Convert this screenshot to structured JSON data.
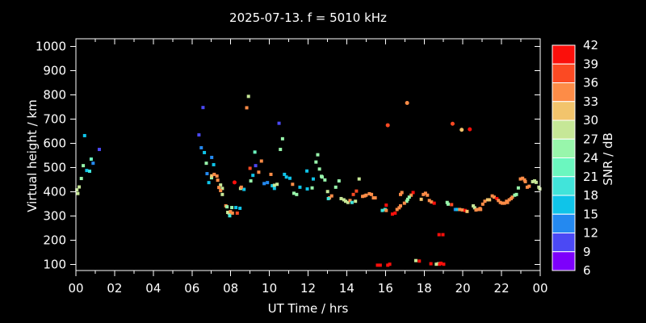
{
  "figure": {
    "background": "#000000",
    "text_color": "#ffffff",
    "frame_color": "#ffffff"
  },
  "chart_data": {
    "type": "scatter",
    "title": "2025-07-13. f = 5010 kHz",
    "xlabel": "UT Time / hrs",
    "ylabel": "Virtual height / km",
    "grid": false,
    "xlim": [
      0,
      24
    ],
    "ylim": [
      75,
      1032
    ],
    "x_major_ticks": [
      0,
      2,
      4,
      6,
      8,
      10,
      12,
      14,
      16,
      18,
      20,
      22,
      24
    ],
    "x_major_labels": [
      "00",
      "02",
      "04",
      "06",
      "08",
      "10",
      "12",
      "14",
      "16",
      "18",
      "20",
      "22",
      "00"
    ],
    "x_minor_ticks": [
      1,
      3,
      5,
      7,
      9,
      11,
      13,
      15,
      17,
      19,
      21,
      23
    ],
    "y_ticks": [
      100,
      200,
      300,
      400,
      500,
      600,
      700,
      800,
      900,
      1000
    ],
    "colorbar": {
      "label": "SNR / dB",
      "tick_labels": [
        "42",
        "39",
        "36",
        "33",
        "30",
        "27",
        "24",
        "21",
        "18",
        "15",
        "12",
        "9",
        "6"
      ],
      "colors_low_to_high": [
        "#7d00fb",
        "#4b49f4",
        "#2489f0",
        "#0fc4e9",
        "#41e4da",
        "#6bf7bf",
        "#98f6ab",
        "#c6e797",
        "#f2c46c",
        "#fd8c47",
        "#fb4a23",
        "#fb0f0b"
      ]
    },
    "points_format": "[ut_hours, virtual_height_km, snr_color_index (0 = 6-9 dB ... 11 = 39-42 dB), optional 1 = circle marker]",
    "points": [
      [
        0.45,
        632,
        3
      ],
      [
        1.21,
        575,
        1
      ],
      [
        0.79,
        535,
        5
      ],
      [
        0.89,
        518,
        2
      ],
      [
        0.38,
        508,
        6
      ],
      [
        0.56,
        488,
        3
      ],
      [
        0.71,
        485,
        4
      ],
      [
        0.28,
        455,
        6
      ],
      [
        0.17,
        420,
        7
      ],
      [
        0.05,
        408,
        7
      ],
      [
        0.1,
        393,
        7
      ],
      [
        6.57,
        748,
        1
      ],
      [
        6.36,
        635,
        1
      ],
      [
        6.48,
        582,
        2
      ],
      [
        6.64,
        562,
        3
      ],
      [
        7.02,
        542,
        2
      ],
      [
        6.74,
        518,
        6
      ],
      [
        7.12,
        512,
        3
      ],
      [
        6.78,
        475,
        2
      ],
      [
        7.01,
        458,
        6
      ],
      [
        7.29,
        465,
        9
      ],
      [
        6.87,
        438,
        3
      ],
      [
        7.33,
        448,
        9
      ],
      [
        7.48,
        428,
        7
      ],
      [
        7.39,
        418,
        9
      ],
      [
        7.57,
        414,
        7
      ],
      [
        7.48,
        405,
        9
      ],
      [
        7.57,
        389,
        7
      ],
      [
        7.02,
        466,
        8
      ],
      [
        7.15,
        472,
        9
      ],
      [
        7.75,
        342,
        9
      ],
      [
        7.81,
        338,
        6
      ],
      [
        8.06,
        335,
        6
      ],
      [
        8.27,
        335,
        3
      ],
      [
        8.48,
        332,
        3
      ],
      [
        7.85,
        315,
        7
      ],
      [
        7.92,
        312,
        7
      ],
      [
        7.99,
        318,
        9
      ],
      [
        8.09,
        312,
        9
      ],
      [
        8.34,
        312,
        10
      ],
      [
        7.95,
        301,
        4
      ],
      [
        8.92,
        794,
        7
      ],
      [
        8.83,
        747,
        9
      ],
      [
        8.2,
        439,
        11,
        1
      ],
      [
        9.0,
        497,
        10
      ],
      [
        9.29,
        508,
        1
      ],
      [
        9.15,
        468,
        3
      ],
      [
        9.25,
        564,
        5
      ],
      [
        9.45,
        481,
        9
      ],
      [
        9.59,
        527,
        9
      ],
      [
        9.04,
        445,
        6
      ],
      [
        8.51,
        414,
        7
      ],
      [
        8.69,
        410,
        3
      ],
      [
        8.55,
        419,
        9
      ],
      [
        10.5,
        683,
        1
      ],
      [
        10.68,
        619,
        6
      ],
      [
        10.57,
        575,
        6
      ],
      [
        10.08,
        472,
        9
      ],
      [
        10.15,
        425,
        3
      ],
      [
        10.26,
        414,
        3
      ],
      [
        10.26,
        427,
        7
      ],
      [
        10.4,
        431,
        7
      ],
      [
        9.73,
        434,
        2
      ],
      [
        9.9,
        438,
        2
      ],
      [
        10.78,
        472,
        3
      ],
      [
        10.88,
        461,
        3
      ],
      [
        11.06,
        456,
        3
      ],
      [
        11.2,
        431,
        9
      ],
      [
        11.27,
        394,
        6
      ],
      [
        11.41,
        389,
        6
      ],
      [
        11.58,
        419,
        3
      ],
      [
        11.96,
        412,
        3
      ],
      [
        12.21,
        416,
        6
      ],
      [
        11.94,
        486,
        3
      ],
      [
        12.27,
        453,
        3
      ],
      [
        12.5,
        553,
        6
      ],
      [
        12.41,
        523,
        6
      ],
      [
        12.59,
        494,
        6
      ],
      [
        12.69,
        464,
        6
      ],
      [
        12.73,
        461,
        6
      ],
      [
        12.87,
        449,
        6
      ],
      [
        13.6,
        445,
        6
      ],
      [
        13.43,
        419,
        6
      ],
      [
        13.01,
        401,
        7
      ],
      [
        13.22,
        383,
        9
      ],
      [
        13.11,
        375,
        9
      ],
      [
        13.05,
        372,
        4
      ],
      [
        14.64,
        453,
        7
      ],
      [
        14.34,
        389,
        10
      ],
      [
        14.5,
        403,
        10
      ],
      [
        13.71,
        372,
        7
      ],
      [
        13.85,
        367,
        7
      ],
      [
        13.94,
        361,
        7
      ],
      [
        14.06,
        356,
        7
      ],
      [
        14.17,
        364,
        9
      ],
      [
        14.27,
        356,
        4
      ],
      [
        14.45,
        361,
        7
      ],
      [
        14.82,
        381,
        9
      ],
      [
        14.92,
        383,
        9
      ],
      [
        15.0,
        386,
        9
      ],
      [
        15.17,
        392,
        9
      ],
      [
        15.28,
        389,
        9
      ],
      [
        15.38,
        375,
        9
      ],
      [
        15.47,
        375,
        9
      ],
      [
        16.04,
        345,
        11
      ],
      [
        15.84,
        323,
        4
      ],
      [
        15.98,
        327,
        4
      ],
      [
        16.04,
        323,
        9
      ],
      [
        16.36,
        308,
        11
      ],
      [
        16.5,
        312,
        11
      ],
      [
        16.6,
        327,
        9
      ],
      [
        16.71,
        334,
        9
      ],
      [
        16.78,
        342,
        9
      ],
      [
        16.78,
        389,
        9
      ],
      [
        16.85,
        397,
        9
      ],
      [
        17.43,
        397,
        11
      ],
      [
        17.33,
        386,
        9
      ],
      [
        17.23,
        378,
        6
      ],
      [
        17.15,
        369,
        6
      ],
      [
        17.1,
        361,
        6
      ],
      [
        16.98,
        353,
        9
      ],
      [
        17.85,
        369,
        8
      ],
      [
        17.96,
        389,
        9
      ],
      [
        18.07,
        394,
        9
      ],
      [
        18.17,
        386,
        9
      ],
      [
        18.27,
        364,
        9
      ],
      [
        18.38,
        358,
        9
      ],
      [
        18.52,
        353,
        11
      ],
      [
        19.19,
        356,
        6
      ],
      [
        19.24,
        349,
        6
      ],
      [
        19.42,
        347,
        10
      ],
      [
        19.61,
        327,
        2
      ],
      [
        19.7,
        327,
        3
      ],
      [
        19.84,
        327,
        9
      ],
      [
        19.98,
        325,
        9
      ],
      [
        20.12,
        323,
        11
      ],
      [
        20.22,
        319,
        8
      ],
      [
        20.54,
        342,
        7
      ],
      [
        20.61,
        334,
        7
      ],
      [
        20.68,
        325,
        9
      ],
      [
        20.78,
        327,
        9
      ],
      [
        20.89,
        331,
        9
      ],
      [
        17.12,
        767,
        9,
        1
      ],
      [
        16.12,
        675,
        10,
        1
      ],
      [
        19.47,
        681,
        10,
        1
      ],
      [
        19.94,
        656,
        8,
        1
      ],
      [
        20.36,
        658,
        11,
        1
      ],
      [
        18.77,
        223,
        11
      ],
      [
        18.97,
        223,
        11
      ],
      [
        15.59,
        97,
        11
      ],
      [
        15.73,
        97,
        11
      ],
      [
        16.12,
        97,
        11
      ],
      [
        16.22,
        101,
        11
      ],
      [
        17.57,
        116,
        7
      ],
      [
        17.75,
        114,
        11
      ],
      [
        18.35,
        103,
        11
      ],
      [
        18.63,
        101,
        7
      ],
      [
        18.73,
        103,
        7
      ],
      [
        18.8,
        101,
        11
      ],
      [
        19.01,
        101,
        11
      ],
      [
        18.87,
        105,
        11
      ],
      [
        20.92,
        327,
        9
      ],
      [
        21.03,
        349,
        9
      ],
      [
        21.14,
        361,
        9
      ],
      [
        21.28,
        367,
        8
      ],
      [
        21.38,
        367,
        8
      ],
      [
        21.52,
        383,
        9
      ],
      [
        21.62,
        378,
        9
      ],
      [
        21.76,
        372,
        11
      ],
      [
        21.84,
        364,
        9
      ],
      [
        21.94,
        356,
        9
      ],
      [
        22.04,
        353,
        9
      ],
      [
        22.15,
        353,
        9
      ],
      [
        22.26,
        361,
        9
      ],
      [
        22.31,
        356,
        9
      ],
      [
        22.4,
        367,
        9
      ],
      [
        22.5,
        372,
        9
      ],
      [
        22.56,
        378,
        9
      ],
      [
        22.68,
        386,
        6
      ],
      [
        22.77,
        389,
        6
      ],
      [
        22.87,
        416,
        6
      ],
      [
        22.98,
        453,
        9
      ],
      [
        23.09,
        456,
        9
      ],
      [
        23.19,
        449,
        9
      ],
      [
        23.23,
        442,
        9
      ],
      [
        23.33,
        419,
        9
      ],
      [
        23.43,
        423,
        9
      ],
      [
        23.61,
        442,
        7
      ],
      [
        23.71,
        445,
        7
      ],
      [
        23.79,
        439,
        7
      ],
      [
        23.93,
        419,
        7
      ],
      [
        23.98,
        412,
        7
      ]
    ]
  }
}
